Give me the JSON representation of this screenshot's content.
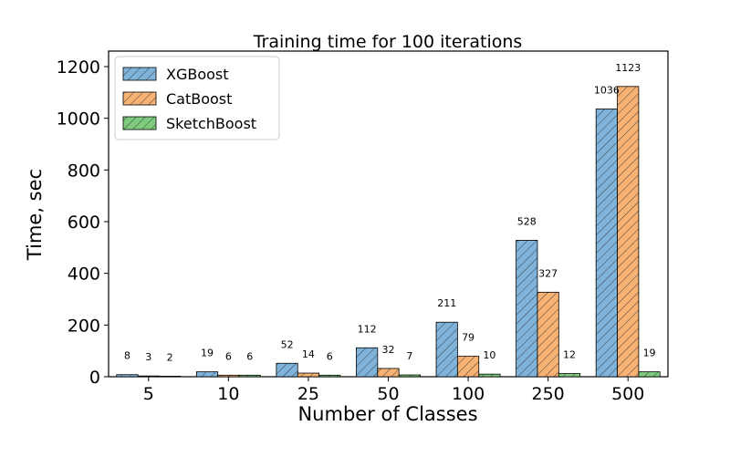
{
  "chart_data": {
    "type": "bar",
    "title": "Training time for 100 iterations",
    "xlabel": "Number of Classes",
    "ylabel": "Time, sec",
    "categories": [
      "5",
      "10",
      "25",
      "50",
      "100",
      "250",
      "500"
    ],
    "ylim": [
      0,
      1260
    ],
    "yticks": [
      "0",
      "200",
      "400",
      "600",
      "800",
      "1000",
      "1200"
    ],
    "ytick_values": [
      0,
      200,
      400,
      600,
      800,
      1000,
      1200
    ],
    "grid": false,
    "legend_position": "top-left",
    "hatch": "diagonal",
    "series": [
      {
        "name": "XGBoost",
        "color": "#7fb3da",
        "values": [
          8,
          19,
          52,
          112,
          211,
          528,
          1036
        ]
      },
      {
        "name": "CatBoost",
        "color": "#f7b274",
        "values": [
          3,
          6,
          14,
          32,
          79,
          327,
          1123
        ]
      },
      {
        "name": "SketchBoost",
        "color": "#7fcc7f",
        "values": [
          2,
          6,
          6,
          7,
          10,
          12,
          19
        ]
      }
    ]
  }
}
